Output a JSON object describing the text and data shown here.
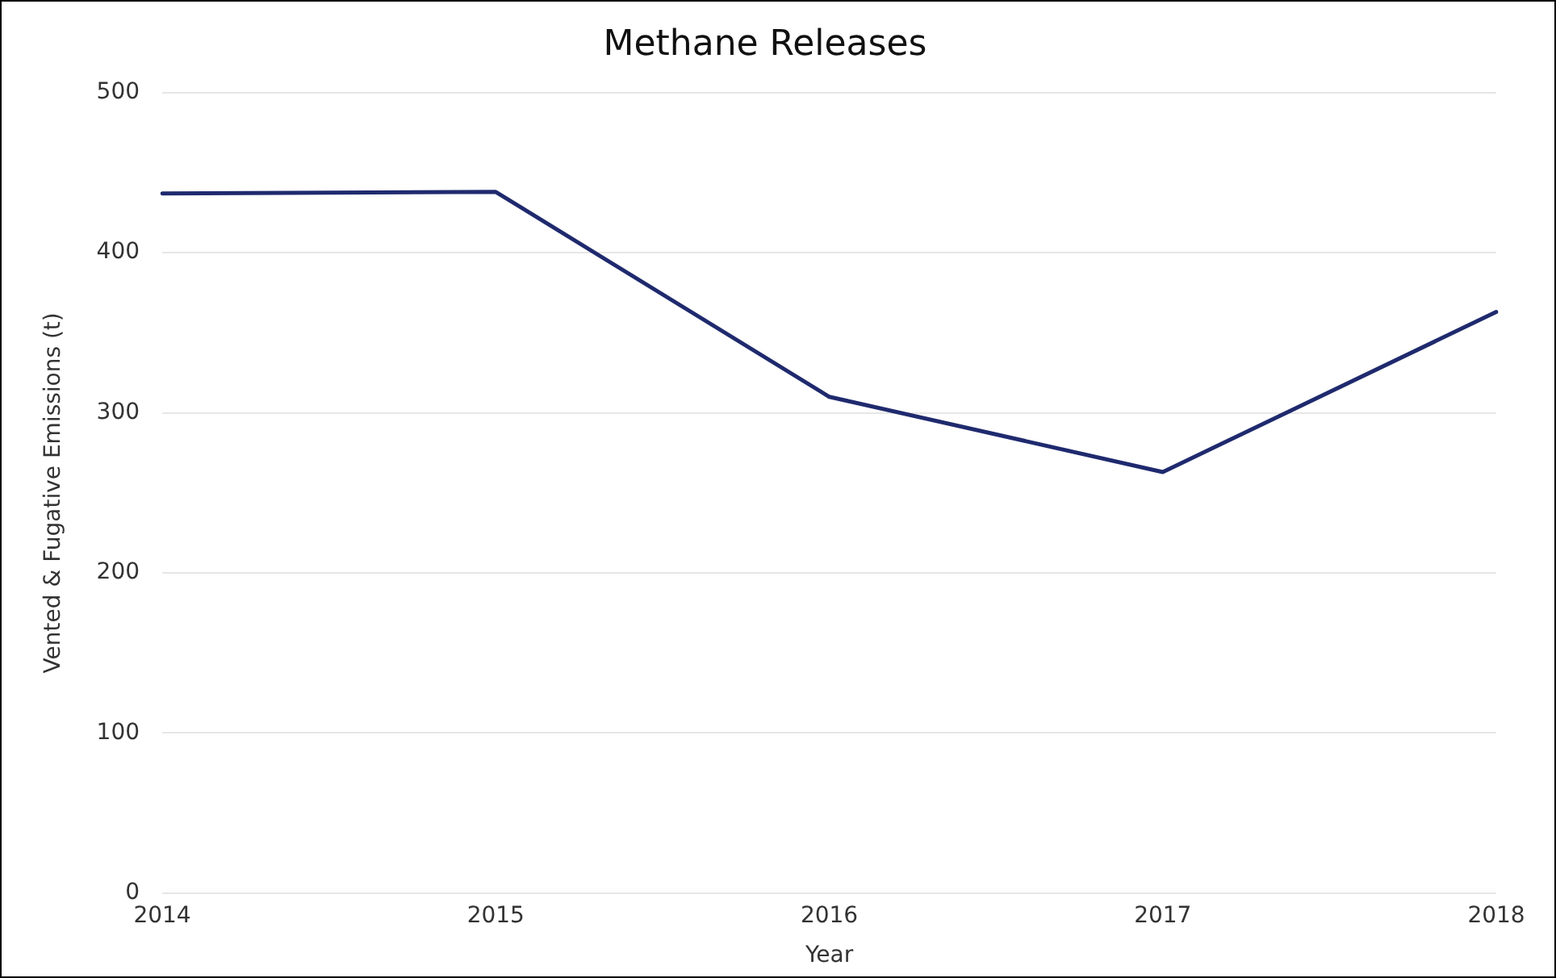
{
  "chart_data": {
    "type": "line",
    "title": "Methane Releases",
    "xlabel": "Year",
    "ylabel": "Vented & Fugative Emissions (t)",
    "categories": [
      "2014",
      "2015",
      "2016",
      "2017",
      "2018"
    ],
    "series": [
      {
        "color": "#1f2a6e",
        "values": [
          437,
          438,
          310,
          263,
          363
        ]
      }
    ],
    "ylim": [
      0,
      500
    ],
    "yticks": [
      0,
      100,
      200,
      300,
      400,
      500
    ],
    "grid": "y",
    "legend": false,
    "marker": "none",
    "line_style": "solid"
  }
}
